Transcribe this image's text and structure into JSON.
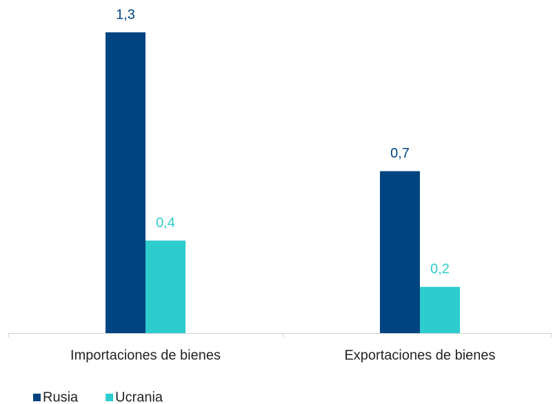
{
  "chart_data": {
    "type": "bar",
    "categories": [
      "Importaciones de bienes",
      "Exportaciones de bienes"
    ],
    "series": [
      {
        "name": "Rusia",
        "color": "#004481",
        "values": [
          1.3,
          0.7
        ],
        "value_labels": [
          "1,3",
          "0,7"
        ]
      },
      {
        "name": "Ucrania",
        "color": "#2dcccd",
        "values": [
          0.4,
          0.2
        ],
        "value_labels": [
          "0,4",
          "0,2"
        ]
      }
    ]
  }
}
